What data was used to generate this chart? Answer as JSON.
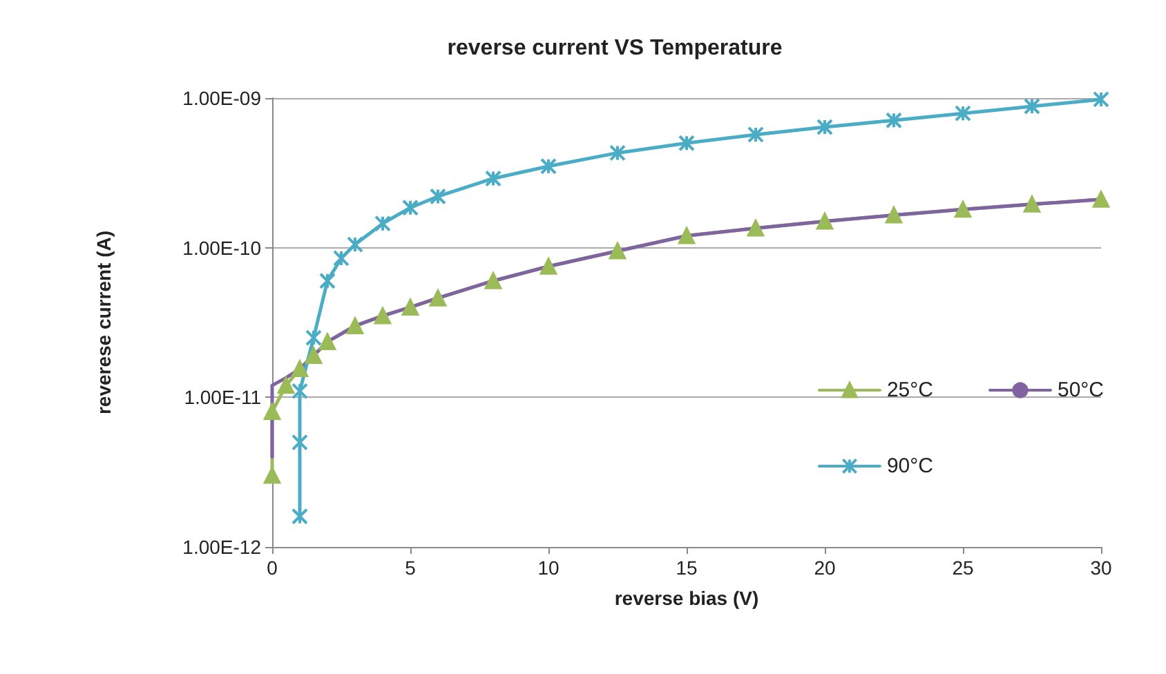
{
  "chart_data": {
    "type": "line",
    "title": "reverse current VS Temperature",
    "xlabel": "reverse bias (V)",
    "ylabel": "reverese current (A)",
    "log": "y",
    "grid": "y",
    "legend": "right",
    "line_style": "solid",
    "xlim": [
      0,
      30
    ],
    "xticks": [
      0,
      5,
      10,
      15,
      20,
      25,
      30
    ],
    "ylim": [
      1e-12,
      1e-09
    ],
    "yticks": [
      {
        "value": 1e-12,
        "label": "1.00E-12"
      },
      {
        "value": 1e-11,
        "label": "1.00E-11"
      },
      {
        "value": 1e-10,
        "label": "1.00E-10"
      },
      {
        "value": 1e-09,
        "label": "1.00E-09"
      }
    ],
    "series": [
      {
        "name": "25°C",
        "color": "#9bbb59",
        "marker": "triangle",
        "x": [
          0,
          0,
          0.5,
          1,
          1.5,
          2,
          3,
          4,
          5,
          6,
          8,
          10,
          12.5,
          15,
          17.5,
          20,
          22.5,
          25,
          27.5,
          30
        ],
        "values": [
          3e-12,
          8e-12,
          1.2e-11,
          1.55e-11,
          1.9e-11,
          2.35e-11,
          3e-11,
          3.5e-11,
          4e-11,
          4.6e-11,
          6e-11,
          7.5e-11,
          9.5e-11,
          1.2e-10,
          1.35e-10,
          1.5e-10,
          1.65e-10,
          1.8e-10,
          1.95e-10,
          2.1e-10
        ]
      },
      {
        "name": "50°C",
        "color": "#8064a2",
        "marker": "none",
        "x": [
          0,
          0,
          0.5,
          1,
          1.5,
          2,
          3,
          4,
          5,
          6,
          8,
          10,
          12.5,
          15,
          17.5,
          20,
          22.5,
          25,
          27.5,
          30
        ],
        "values": [
          4e-12,
          1.2e-11,
          1.35e-11,
          1.55e-11,
          1.9e-11,
          2.35e-11,
          3e-11,
          3.5e-11,
          4e-11,
          4.6e-11,
          6e-11,
          7.5e-11,
          9.5e-11,
          1.2e-10,
          1.35e-10,
          1.5e-10,
          1.65e-10,
          1.8e-10,
          1.95e-10,
          2.1e-10
        ]
      },
      {
        "name": "90°C",
        "color": "#4bacc6",
        "marker": "cross",
        "x": [
          1,
          1,
          1,
          1.5,
          2,
          2.5,
          3,
          4,
          5,
          6,
          8,
          10,
          12.5,
          15,
          17.5,
          20,
          22.5,
          25,
          27.5,
          30
        ],
        "values": [
          1.6e-12,
          5e-12,
          1.1e-11,
          2.5e-11,
          6e-11,
          8.5e-11,
          1.05e-10,
          1.45e-10,
          1.85e-10,
          2.2e-10,
          2.9e-10,
          3.5e-10,
          4.3e-10,
          5e-10,
          5.7e-10,
          6.4e-10,
          7.1e-10,
          7.9e-10,
          8.8e-10,
          9.8e-10
        ]
      }
    ]
  }
}
